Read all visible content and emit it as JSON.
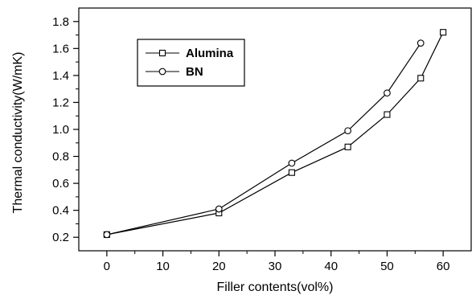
{
  "chart_data": {
    "type": "line",
    "xlabel": "Filler contents(vol%)",
    "ylabel": "Thermal conductivity(W/mK)",
    "xlim": [
      -5,
      65
    ],
    "ylim": [
      0.1,
      1.9
    ],
    "xticks": [
      0,
      10,
      20,
      30,
      40,
      50,
      60
    ],
    "yticks": [
      0.2,
      0.4,
      0.6,
      0.8,
      1.0,
      1.2,
      1.4,
      1.6,
      1.8
    ],
    "ytick_labels": [
      "0.2",
      "0.4",
      "0.6",
      "0.8",
      "1.0",
      "1.2",
      "1.4",
      "1.6",
      "1.8"
    ],
    "grid": false,
    "legend_position": "top-left",
    "series": [
      {
        "name": "Alumina",
        "marker": "square",
        "color": "#000000",
        "x": [
          0,
          20,
          33,
          43,
          50,
          56,
          60
        ],
        "y": [
          0.22,
          0.38,
          0.68,
          0.87,
          1.11,
          1.38,
          1.72
        ]
      },
      {
        "name": "BN",
        "marker": "circle",
        "color": "#000000",
        "x": [
          0,
          20,
          33,
          43,
          50,
          56
        ],
        "y": [
          0.22,
          0.41,
          0.75,
          0.99,
          1.27,
          1.64
        ]
      }
    ]
  }
}
